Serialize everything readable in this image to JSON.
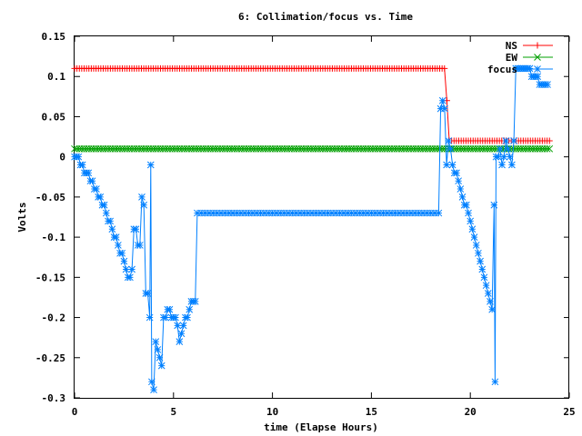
{
  "chart_data": {
    "type": "line",
    "title": "6: Collimation/focus vs. Time",
    "xlabel": "time (Elapse Hours)",
    "ylabel": "Volts",
    "xlim": [
      0,
      25
    ],
    "ylim": [
      -0.3,
      0.15
    ],
    "x_ticks": [
      "0",
      "5",
      "10",
      "15",
      "20",
      "25"
    ],
    "y_ticks": [
      "0.15",
      "0.1",
      "0.05",
      "0",
      "-0.05",
      "-0.1",
      "-0.15",
      "-0.2",
      "-0.25",
      "-0.3"
    ],
    "grid": false,
    "legend_position": "top-right",
    "series": [
      {
        "name": "NS",
        "color": "#ff0000",
        "marker": "plus",
        "x_range": [
          0,
          24
        ],
        "count": 200,
        "segments": [
          [
            0,
            18.7,
            0.11
          ],
          [
            18.7,
            18.85,
            0.07
          ],
          [
            18.85,
            24,
            0.02
          ]
        ]
      },
      {
        "name": "EW",
        "color": "#00a000",
        "marker": "cross",
        "x_range": [
          0,
          24
        ],
        "count": 200,
        "segments": [
          [
            0,
            24,
            0.01
          ]
        ]
      },
      {
        "name": "focus",
        "color": "#0080ff",
        "marker": "star",
        "points": [
          [
            0,
            0
          ],
          [
            0.1,
            0
          ],
          [
            0.2,
            0
          ],
          [
            0.3,
            -0.01
          ],
          [
            0.4,
            -0.01
          ],
          [
            0.5,
            -0.02
          ],
          [
            0.6,
            -0.02
          ],
          [
            0.7,
            -0.02
          ],
          [
            0.8,
            -0.03
          ],
          [
            0.9,
            -0.03
          ],
          [
            1.0,
            -0.04
          ],
          [
            1.1,
            -0.04
          ],
          [
            1.2,
            -0.05
          ],
          [
            1.3,
            -0.05
          ],
          [
            1.4,
            -0.06
          ],
          [
            1.5,
            -0.06
          ],
          [
            1.6,
            -0.07
          ],
          [
            1.7,
            -0.08
          ],
          [
            1.8,
            -0.08
          ],
          [
            1.9,
            -0.09
          ],
          [
            2.0,
            -0.1
          ],
          [
            2.1,
            -0.1
          ],
          [
            2.2,
            -0.11
          ],
          [
            2.3,
            -0.12
          ],
          [
            2.4,
            -0.12
          ],
          [
            2.5,
            -0.13
          ],
          [
            2.6,
            -0.14
          ],
          [
            2.7,
            -0.15
          ],
          [
            2.8,
            -0.15
          ],
          [
            2.9,
            -0.14
          ],
          [
            3.0,
            -0.09
          ],
          [
            3.1,
            -0.09
          ],
          [
            3.2,
            -0.11
          ],
          [
            3.3,
            -0.11
          ],
          [
            3.4,
            -0.05
          ],
          [
            3.5,
            -0.06
          ],
          [
            3.6,
            -0.17
          ],
          [
            3.7,
            -0.17
          ],
          [
            3.8,
            -0.2
          ],
          [
            3.85,
            -0.01
          ],
          [
            3.9,
            -0.28
          ],
          [
            4.0,
            -0.29
          ],
          [
            4.1,
            -0.23
          ],
          [
            4.2,
            -0.24
          ],
          [
            4.3,
            -0.25
          ],
          [
            4.4,
            -0.26
          ],
          [
            4.5,
            -0.2
          ],
          [
            4.6,
            -0.2
          ],
          [
            4.7,
            -0.19
          ],
          [
            4.8,
            -0.19
          ],
          [
            4.9,
            -0.2
          ],
          [
            5.0,
            -0.2
          ],
          [
            5.1,
            -0.2
          ],
          [
            5.2,
            -0.21
          ],
          [
            5.3,
            -0.23
          ],
          [
            5.4,
            -0.22
          ],
          [
            5.5,
            -0.21
          ],
          [
            5.6,
            -0.2
          ],
          [
            5.7,
            -0.2
          ],
          [
            5.8,
            -0.19
          ],
          [
            5.9,
            -0.18
          ],
          [
            6.0,
            -0.18
          ],
          [
            6.1,
            -0.18
          ],
          [
            6.2,
            -0.07
          ],
          [
            6.4,
            -0.07
          ],
          [
            6.6,
            -0.07
          ],
          [
            6.8,
            -0.07
          ],
          [
            7.0,
            -0.07
          ],
          [
            7.2,
            -0.07
          ],
          [
            7.4,
            -0.07
          ],
          [
            7.6,
            -0.07
          ],
          [
            7.8,
            -0.07
          ],
          [
            8.0,
            -0.07
          ],
          [
            8.2,
            -0.07
          ],
          [
            8.4,
            -0.07
          ],
          [
            8.6,
            -0.07
          ],
          [
            8.8,
            -0.07
          ],
          [
            9.0,
            -0.07
          ],
          [
            9.2,
            -0.07
          ],
          [
            9.4,
            -0.07
          ],
          [
            9.6,
            -0.07
          ],
          [
            9.8,
            -0.07
          ],
          [
            10.0,
            -0.07
          ],
          [
            10.2,
            -0.07
          ],
          [
            10.4,
            -0.07
          ],
          [
            10.6,
            -0.07
          ],
          [
            10.8,
            -0.07
          ],
          [
            11.0,
            -0.07
          ],
          [
            11.2,
            -0.07
          ],
          [
            11.4,
            -0.07
          ],
          [
            11.6,
            -0.07
          ],
          [
            11.8,
            -0.07
          ],
          [
            12.0,
            -0.07
          ],
          [
            12.2,
            -0.07
          ],
          [
            12.4,
            -0.07
          ],
          [
            12.6,
            -0.07
          ],
          [
            12.8,
            -0.07
          ],
          [
            13.0,
            -0.07
          ],
          [
            13.2,
            -0.07
          ],
          [
            13.4,
            -0.07
          ],
          [
            13.6,
            -0.07
          ],
          [
            13.8,
            -0.07
          ],
          [
            14.0,
            -0.07
          ],
          [
            14.2,
            -0.07
          ],
          [
            14.4,
            -0.07
          ],
          [
            14.6,
            -0.07
          ],
          [
            14.8,
            -0.07
          ],
          [
            15.0,
            -0.07
          ],
          [
            15.2,
            -0.07
          ],
          [
            15.4,
            -0.07
          ],
          [
            15.6,
            -0.07
          ],
          [
            15.8,
            -0.07
          ],
          [
            16.0,
            -0.07
          ],
          [
            16.2,
            -0.07
          ],
          [
            16.4,
            -0.07
          ],
          [
            16.6,
            -0.07
          ],
          [
            16.8,
            -0.07
          ],
          [
            17.0,
            -0.07
          ],
          [
            17.2,
            -0.07
          ],
          [
            17.4,
            -0.07
          ],
          [
            17.6,
            -0.07
          ],
          [
            17.8,
            -0.07
          ],
          [
            18.0,
            -0.07
          ],
          [
            18.2,
            -0.07
          ],
          [
            18.4,
            -0.07
          ],
          [
            18.5,
            0.06
          ],
          [
            18.6,
            0.07
          ],
          [
            18.7,
            0.06
          ],
          [
            18.8,
            -0.01
          ],
          [
            18.9,
            0.02
          ],
          [
            19.0,
            0.01
          ],
          [
            19.1,
            -0.01
          ],
          [
            19.2,
            -0.02
          ],
          [
            19.3,
            -0.02
          ],
          [
            19.4,
            -0.03
          ],
          [
            19.5,
            -0.04
          ],
          [
            19.6,
            -0.05
          ],
          [
            19.7,
            -0.06
          ],
          [
            19.8,
            -0.06
          ],
          [
            19.9,
            -0.07
          ],
          [
            20.0,
            -0.08
          ],
          [
            20.1,
            -0.09
          ],
          [
            20.2,
            -0.1
          ],
          [
            20.3,
            -0.11
          ],
          [
            20.4,
            -0.12
          ],
          [
            20.5,
            -0.13
          ],
          [
            20.6,
            -0.14
          ],
          [
            20.7,
            -0.15
          ],
          [
            20.8,
            -0.16
          ],
          [
            20.9,
            -0.17
          ],
          [
            21.0,
            -0.18
          ],
          [
            21.1,
            -0.19
          ],
          [
            21.2,
            -0.06
          ],
          [
            21.25,
            -0.28
          ],
          [
            21.3,
            0.0
          ],
          [
            21.4,
            0.0
          ],
          [
            21.5,
            0.01
          ],
          [
            21.6,
            -0.01
          ],
          [
            21.7,
            0.0
          ],
          [
            21.8,
            0.02
          ],
          [
            21.9,
            0.01
          ],
          [
            22.0,
            0.0
          ],
          [
            22.1,
            -0.01
          ],
          [
            22.2,
            0.02
          ],
          [
            22.3,
            0.11
          ],
          [
            22.4,
            0.11
          ],
          [
            22.5,
            0.11
          ],
          [
            22.6,
            0.11
          ],
          [
            22.7,
            0.11
          ],
          [
            22.8,
            0.11
          ],
          [
            22.9,
            0.11
          ],
          [
            23.0,
            0.11
          ],
          [
            23.1,
            0.1
          ],
          [
            23.2,
            0.1
          ],
          [
            23.3,
            0.1
          ],
          [
            23.4,
            0.1
          ],
          [
            23.5,
            0.09
          ],
          [
            23.6,
            0.09
          ],
          [
            23.7,
            0.09
          ],
          [
            23.8,
            0.09
          ],
          [
            23.9,
            0.09
          ]
        ]
      }
    ]
  }
}
